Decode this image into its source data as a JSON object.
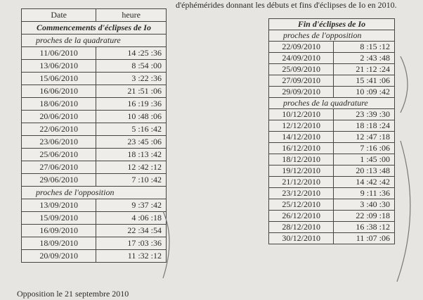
{
  "caption": "d'éphémérides donnant les débuts et fins d'éclipses de Io en 2010.",
  "left_table": {
    "header": [
      "Date",
      "heure"
    ],
    "title": "Commencements d'éclipses de Io",
    "sections": [
      {
        "label": "proches de la quadrature",
        "rows": [
          [
            "11/06/2010",
            "14 :25 :36"
          ],
          [
            "13/06/2010",
            "8 :54 :00"
          ],
          [
            "15/06/2010",
            "3 :22 :36"
          ],
          [
            "16/06/2010",
            "21 :51 :06"
          ],
          [
            "18/06/2010",
            "16 :19 :36"
          ],
          [
            "20/06/2010",
            "10 :48 :06"
          ],
          [
            "22/06/2010",
            "5 :16 :42"
          ],
          [
            "23/06/2010",
            "23 :45 :06"
          ],
          [
            "25/06/2010",
            "18 :13 :42"
          ],
          [
            "27/06/2010",
            "12 :42 :12"
          ],
          [
            "29/06/2010",
            "7 :10 :42"
          ]
        ]
      },
      {
        "label": "proches de l'opposition",
        "rows": [
          [
            "13/09/2010",
            "9 :37 :42"
          ],
          [
            "15/09/2010",
            "4 :06 :18"
          ],
          [
            "16/09/2010",
            "22 :34 :54"
          ],
          [
            "18/09/2010",
            "17 :03 :36"
          ],
          [
            "20/09/2010",
            "11 :32 :12"
          ]
        ]
      }
    ]
  },
  "note": "Opposition le 21 septembre 2010",
  "right_table": {
    "title": "Fin d'éclipses de Io",
    "sections": [
      {
        "label": "proches de l'opposition",
        "rows": [
          [
            "22/09/2010",
            "8 :15 :12"
          ],
          [
            "24/09/2010",
            "2 :43 :48"
          ],
          [
            "25/09/2010",
            "21 :12 :24"
          ],
          [
            "27/09/2010",
            "15 :41 :06"
          ],
          [
            "29/09/2010",
            "10 :09 :42"
          ]
        ]
      },
      {
        "label": "proches de la quadrature",
        "rows": [
          [
            "10/12/2010",
            "23 :39 :30"
          ],
          [
            "12/12/2010",
            "18 :18 :24"
          ],
          [
            "14/12/2010",
            "12 :47 :18"
          ],
          [
            "16/12/2010",
            "7 :16 :06"
          ],
          [
            "18/12/2010",
            "1 :45 :00"
          ],
          [
            "19/12/2010",
            "20 :13 :48"
          ],
          [
            "21/12/2010",
            "14 :42 :42"
          ],
          [
            "23/12/2010",
            "9 :11 :36"
          ],
          [
            "25/12/2010",
            "3 :40 :30"
          ],
          [
            "26/12/2010",
            "22 :09 :18"
          ],
          [
            "28/12/2010",
            "16 :38 :12"
          ],
          [
            "30/12/2010",
            "11 :07 :06"
          ]
        ]
      }
    ]
  }
}
